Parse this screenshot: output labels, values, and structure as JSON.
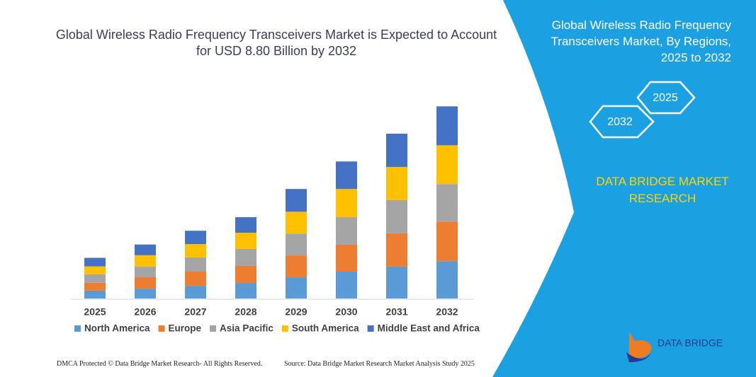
{
  "chart_data": {
    "type": "stacked-bar",
    "title": "Global Wireless Radio Frequency Transceivers Market is Expected to Account for USD 8.80 Billion by 2032",
    "categories": [
      "2025",
      "2026",
      "2027",
      "2028",
      "2029",
      "2030",
      "2031",
      "2032"
    ],
    "series": [
      {
        "name": "North America",
        "color": "#5b9bd5",
        "values": [
          0.36,
          0.45,
          0.58,
          0.71,
          0.97,
          1.23,
          1.46,
          1.71
        ]
      },
      {
        "name": "Europe",
        "color": "#ed7d31",
        "values": [
          0.36,
          0.52,
          0.65,
          0.78,
          1.0,
          1.23,
          1.52,
          1.81
        ]
      },
      {
        "name": "Asia Pacific",
        "color": "#a5a5a5",
        "values": [
          0.39,
          0.49,
          0.65,
          0.78,
          1.0,
          1.26,
          1.52,
          1.71
        ]
      },
      {
        "name": "South America",
        "color": "#ffc000",
        "values": [
          0.36,
          0.52,
          0.61,
          0.74,
          1.0,
          1.29,
          1.52,
          1.78
        ]
      },
      {
        "name": "Middle East and Africa",
        "color": "#4472c4",
        "values": [
          0.39,
          0.49,
          0.61,
          0.71,
          1.04,
          1.26,
          1.52,
          1.78
        ]
      }
    ]
  },
  "panel": {
    "title": "Global Wireless Radio Frequency Transceivers Market, By Regions, 2025 to 2032",
    "hexagons": [
      "2025",
      "2032"
    ],
    "brand": "DATA BRIDGE MARKET RESEARCH",
    "logo": "DATA BRIDGE"
  },
  "footer": {
    "left": "DMCA Protected © Data Bridge Market Research-  All Rights Reserved.",
    "right": "Source: Data Bridge Market Research  Market Analysis Study 2025"
  }
}
